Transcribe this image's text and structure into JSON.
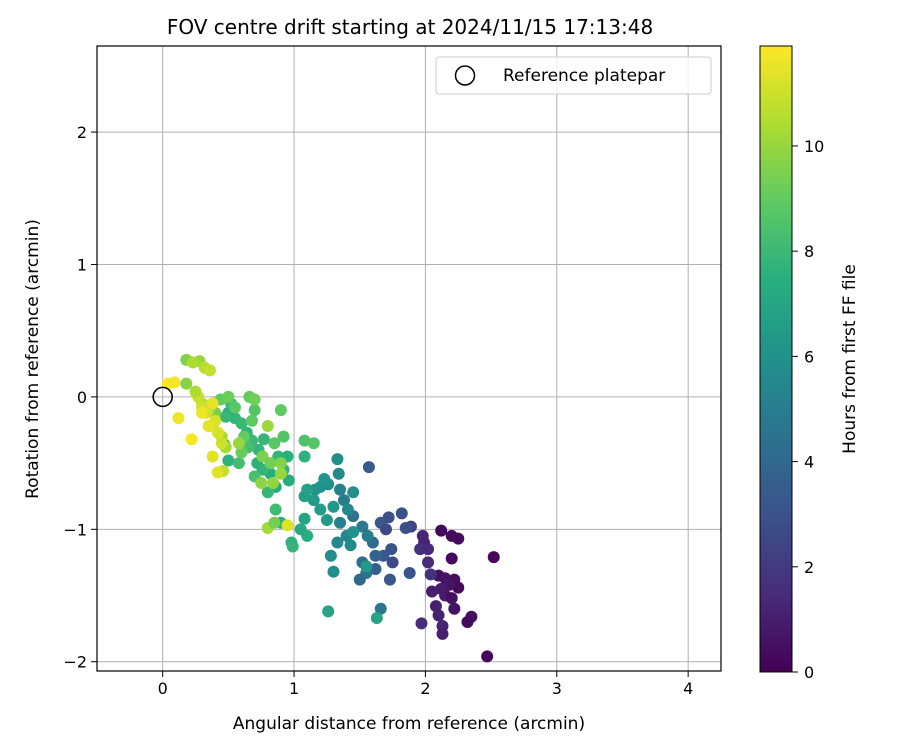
{
  "chart_data": {
    "type": "scatter",
    "title": "FOV centre drift starting at 2024/11/15 17:13:48",
    "xlabel": "Angular distance from reference (arcmin)",
    "ylabel": "Rotation from reference (arcmin)",
    "xlim": [
      -0.5,
      4.25
    ],
    "ylim": [
      -2.07,
      2.65
    ],
    "xticks": [
      0,
      1,
      2,
      3,
      4
    ],
    "yticks": [
      -2,
      -1,
      0,
      1,
      2
    ],
    "xtick_labels": [
      "0",
      "1",
      "2",
      "3",
      "4"
    ],
    "ytick_labels": [
      "−2",
      "−1",
      "0",
      "1",
      "2"
    ],
    "grid": true,
    "legend": {
      "location": "top-right",
      "entries": [
        {
          "label": "Reference platepar",
          "marker": "open-circle"
        }
      ]
    },
    "reference_point": {
      "x": 0,
      "y": 0
    },
    "colorbar": {
      "label": "Hours from first FF file",
      "colormap": "viridis",
      "range": [
        0,
        11.9
      ],
      "ticks": [
        0,
        2,
        4,
        6,
        8,
        10
      ],
      "tick_labels": [
        "0",
        "2",
        "4",
        "6",
        "8",
        "10"
      ]
    },
    "series": [
      {
        "values": [
          {
            "x": 2.12,
            "y": -1.01,
            "c": 0.2
          },
          {
            "x": 2.2,
            "y": -1.05,
            "c": 0.3
          },
          {
            "x": 2.25,
            "y": -1.07,
            "c": 0.3
          },
          {
            "x": 2.52,
            "y": -1.21,
            "c": 0.2
          },
          {
            "x": 2.2,
            "y": -1.22,
            "c": 0.3
          },
          {
            "x": 2.1,
            "y": -1.35,
            "c": 0.5
          },
          {
            "x": 2.15,
            "y": -1.37,
            "c": 0.6
          },
          {
            "x": 2.22,
            "y": -1.38,
            "c": 0.4
          },
          {
            "x": 2.25,
            "y": -1.44,
            "c": 0.3
          },
          {
            "x": 2.18,
            "y": -1.42,
            "c": 0.7
          },
          {
            "x": 2.12,
            "y": -1.45,
            "c": 0.9
          },
          {
            "x": 2.05,
            "y": -1.47,
            "c": 1.0
          },
          {
            "x": 2.15,
            "y": -1.5,
            "c": 0.8
          },
          {
            "x": 2.2,
            "y": -1.52,
            "c": 0.5
          },
          {
            "x": 2.08,
            "y": -1.58,
            "c": 1.0
          },
          {
            "x": 2.22,
            "y": -1.6,
            "c": 0.6
          },
          {
            "x": 2.1,
            "y": -1.65,
            "c": 1.1
          },
          {
            "x": 2.35,
            "y": -1.66,
            "c": 0.4
          },
          {
            "x": 2.32,
            "y": -1.7,
            "c": 0.3
          },
          {
            "x": 1.97,
            "y": -1.71,
            "c": 1.5
          },
          {
            "x": 2.13,
            "y": -1.73,
            "c": 1.2
          },
          {
            "x": 2.13,
            "y": -1.79,
            "c": 1.0
          },
          {
            "x": 2.47,
            "y": -1.96,
            "c": 0.2
          },
          {
            "x": 1.98,
            "y": -1.05,
            "c": 1.3
          },
          {
            "x": 1.99,
            "y": -1.1,
            "c": 1.2
          },
          {
            "x": 1.96,
            "y": -1.15,
            "c": 1.6
          },
          {
            "x": 2.02,
            "y": -1.15,
            "c": 1.4
          },
          {
            "x": 2.02,
            "y": -1.25,
            "c": 1.4
          },
          {
            "x": 2.04,
            "y": -1.34,
            "c": 1.7
          },
          {
            "x": 1.89,
            "y": -0.98,
            "c": 2.4
          },
          {
            "x": 1.82,
            "y": -0.88,
            "c": 3.0
          },
          {
            "x": 1.85,
            "y": -0.99,
            "c": 2.8
          },
          {
            "x": 1.72,
            "y": -0.91,
            "c": 2.9
          },
          {
            "x": 1.66,
            "y": -0.95,
            "c": 3.2
          },
          {
            "x": 1.7,
            "y": -1.0,
            "c": 2.6
          },
          {
            "x": 1.74,
            "y": -1.15,
            "c": 3.0
          },
          {
            "x": 1.68,
            "y": -1.2,
            "c": 3.3
          },
          {
            "x": 1.75,
            "y": -1.25,
            "c": 2.7
          },
          {
            "x": 1.88,
            "y": -1.33,
            "c": 3.0
          },
          {
            "x": 1.73,
            "y": -1.38,
            "c": 3.2
          },
          {
            "x": 1.62,
            "y": -1.3,
            "c": 3.6
          },
          {
            "x": 1.57,
            "y": -0.53,
            "c": 3.4
          },
          {
            "x": 1.6,
            "y": -1.1,
            "c": 4.0
          },
          {
            "x": 1.62,
            "y": -1.2,
            "c": 3.8
          },
          {
            "x": 1.52,
            "y": -1.25,
            "c": 4.2
          },
          {
            "x": 1.55,
            "y": -1.33,
            "c": 4.5
          },
          {
            "x": 1.5,
            "y": -1.38,
            "c": 4.0
          },
          {
            "x": 1.66,
            "y": -1.6,
            "c": 4.6
          },
          {
            "x": 1.45,
            "y": -0.9,
            "c": 4.4
          },
          {
            "x": 1.52,
            "y": -0.98,
            "c": 4.8
          },
          {
            "x": 1.56,
            "y": -1.05,
            "c": 5.0
          },
          {
            "x": 1.35,
            "y": -0.95,
            "c": 5.2
          },
          {
            "x": 1.4,
            "y": -1.05,
            "c": 5.4
          },
          {
            "x": 1.43,
            "y": -1.12,
            "c": 5.6
          },
          {
            "x": 1.33,
            "y": -1.1,
            "c": 5.5
          },
          {
            "x": 1.28,
            "y": -1.2,
            "c": 5.7
          },
          {
            "x": 1.3,
            "y": -1.32,
            "c": 5.9
          },
          {
            "x": 1.35,
            "y": -0.7,
            "c": 5.3
          },
          {
            "x": 1.38,
            "y": -0.78,
            "c": 5.0
          },
          {
            "x": 1.41,
            "y": -0.85,
            "c": 5.5
          },
          {
            "x": 1.33,
            "y": -0.47,
            "c": 5.8
          },
          {
            "x": 1.34,
            "y": -0.58,
            "c": 5.5
          },
          {
            "x": 1.45,
            "y": -0.72,
            "c": 5.9
          },
          {
            "x": 1.26,
            "y": -0.66,
            "c": 5.8
          },
          {
            "x": 1.2,
            "y": -0.68,
            "c": 6.0
          },
          {
            "x": 1.23,
            "y": -0.62,
            "c": 6.2
          },
          {
            "x": 1.16,
            "y": -0.7,
            "c": 6.1
          },
          {
            "x": 1.3,
            "y": -0.83,
            "c": 6.3
          },
          {
            "x": 1.25,
            "y": -0.93,
            "c": 6.4
          },
          {
            "x": 1.2,
            "y": -0.85,
            "c": 6.5
          },
          {
            "x": 1.08,
            "y": -0.75,
            "c": 6.6
          },
          {
            "x": 1.1,
            "y": -0.7,
            "c": 6.8
          },
          {
            "x": 1.15,
            "y": -0.78,
            "c": 6.4
          },
          {
            "x": 1.45,
            "y": -1.02,
            "c": 6.0
          },
          {
            "x": 1.55,
            "y": -1.28,
            "c": 6.3
          },
          {
            "x": 1.26,
            "y": -1.62,
            "c": 6.9
          },
          {
            "x": 1.63,
            "y": -1.67,
            "c": 6.9
          },
          {
            "x": 1.05,
            "y": -1.0,
            "c": 7.2
          },
          {
            "x": 1.08,
            "y": -0.92,
            "c": 7.0
          },
          {
            "x": 1.1,
            "y": -1.05,
            "c": 7.4
          },
          {
            "x": 0.9,
            "y": -0.95,
            "c": 7.5
          },
          {
            "x": 0.98,
            "y": -1.1,
            "c": 7.6
          },
          {
            "x": 0.96,
            "y": -0.63,
            "c": 7.3
          },
          {
            "x": 0.92,
            "y": -0.55,
            "c": 7.7
          },
          {
            "x": 0.86,
            "y": -0.68,
            "c": 7.2
          },
          {
            "x": 0.88,
            "y": -0.45,
            "c": 7.8
          },
          {
            "x": 0.95,
            "y": -0.45,
            "c": 7.5
          },
          {
            "x": 1.08,
            "y": -0.45,
            "c": 7.6
          },
          {
            "x": 0.82,
            "y": -0.58,
            "c": 7.4
          },
          {
            "x": 0.8,
            "y": -0.72,
            "c": 7.9
          },
          {
            "x": 0.76,
            "y": -0.55,
            "c": 7.8
          },
          {
            "x": 0.72,
            "y": -0.5,
            "c": 7.6
          },
          {
            "x": 0.73,
            "y": -0.4,
            "c": 7.8
          },
          {
            "x": 0.77,
            "y": -0.32,
            "c": 7.9
          },
          {
            "x": 0.68,
            "y": -0.33,
            "c": 8.0
          },
          {
            "x": 0.64,
            "y": -0.27,
            "c": 7.7
          },
          {
            "x": 0.6,
            "y": -0.2,
            "c": 8.0
          },
          {
            "x": 0.55,
            "y": -0.16,
            "c": 7.8
          },
          {
            "x": 0.5,
            "y": -0.12,
            "c": 7.5
          },
          {
            "x": 0.48,
            "y": -0.15,
            "c": 7.9
          },
          {
            "x": 0.52,
            "y": -0.05,
            "c": 8.1
          },
          {
            "x": 0.47,
            "y": -0.36,
            "c": 7.7
          },
          {
            "x": 0.5,
            "y": -0.48,
            "c": 7.6
          },
          {
            "x": 0.58,
            "y": -0.5,
            "c": 8.2
          },
          {
            "x": 0.65,
            "y": -0.38,
            "c": 8.3
          },
          {
            "x": 0.7,
            "y": -0.6,
            "c": 8.4
          },
          {
            "x": 0.86,
            "y": -0.85,
            "c": 8.1
          },
          {
            "x": 0.99,
            "y": -1.13,
            "c": 7.8
          },
          {
            "x": 1.08,
            "y": -0.33,
            "c": 8.5
          },
          {
            "x": 1.15,
            "y": -0.35,
            "c": 8.7
          },
          {
            "x": 0.92,
            "y": -0.3,
            "c": 8.6
          },
          {
            "x": 0.85,
            "y": -0.35,
            "c": 8.8
          },
          {
            "x": 0.9,
            "y": -0.1,
            "c": 8.9
          },
          {
            "x": 0.7,
            "y": -0.1,
            "c": 8.6
          },
          {
            "x": 0.68,
            "y": -0.18,
            "c": 8.9
          },
          {
            "x": 0.62,
            "y": -0.3,
            "c": 9.0
          },
          {
            "x": 0.6,
            "y": -0.42,
            "c": 9.1
          },
          {
            "x": 0.55,
            "y": -0.08,
            "c": 8.8
          },
          {
            "x": 0.44,
            "y": -0.02,
            "c": 9.0
          },
          {
            "x": 0.5,
            "y": 0.0,
            "c": 9.2
          },
          {
            "x": 0.66,
            "y": 0.0,
            "c": 9.0
          },
          {
            "x": 0.7,
            "y": -0.02,
            "c": 9.3
          },
          {
            "x": 0.4,
            "y": -0.12,
            "c": 9.4
          },
          {
            "x": 0.76,
            "y": -0.45,
            "c": 9.5
          },
          {
            "x": 0.82,
            "y": -0.5,
            "c": 9.3
          },
          {
            "x": 0.9,
            "y": -0.5,
            "c": 9.6
          },
          {
            "x": 0.75,
            "y": -0.65,
            "c": 9.8
          },
          {
            "x": 0.84,
            "y": -0.65,
            "c": 9.9
          },
          {
            "x": 0.9,
            "y": -0.58,
            "c": 10.0
          },
          {
            "x": 0.8,
            "y": -0.22,
            "c": 10.1
          },
          {
            "x": 0.58,
            "y": -0.35,
            "c": 10.0
          },
          {
            "x": 0.48,
            "y": -0.38,
            "c": 10.3
          },
          {
            "x": 0.45,
            "y": -0.3,
            "c": 10.4
          },
          {
            "x": 0.38,
            "y": -0.22,
            "c": 10.6
          },
          {
            "x": 0.35,
            "y": -0.1,
            "c": 10.5
          },
          {
            "x": 0.3,
            "y": -0.05,
            "c": 10.7
          },
          {
            "x": 0.27,
            "y": 0.0,
            "c": 10.9
          },
          {
            "x": 0.25,
            "y": 0.04,
            "c": 10.4
          },
          {
            "x": 0.18,
            "y": 0.1,
            "c": 9.7
          },
          {
            "x": 0.18,
            "y": 0.28,
            "c": 9.6
          },
          {
            "x": 0.28,
            "y": 0.27,
            "c": 10.0
          },
          {
            "x": 0.23,
            "y": 0.26,
            "c": 10.4
          },
          {
            "x": 0.32,
            "y": 0.22,
            "c": 10.6
          },
          {
            "x": 0.36,
            "y": 0.2,
            "c": 10.8
          },
          {
            "x": 0.3,
            "y": -0.08,
            "c": 11.0
          },
          {
            "x": 0.33,
            "y": -0.12,
            "c": 11.1
          },
          {
            "x": 0.4,
            "y": -0.18,
            "c": 11.2
          },
          {
            "x": 0.45,
            "y": -0.35,
            "c": 11.0
          },
          {
            "x": 0.46,
            "y": -0.56,
            "c": 10.8
          },
          {
            "x": 0.42,
            "y": -0.57,
            "c": 11.3
          },
          {
            "x": 0.38,
            "y": -0.45,
            "c": 11.4
          },
          {
            "x": 0.42,
            "y": -0.27,
            "c": 11.2
          },
          {
            "x": 0.35,
            "y": -0.22,
            "c": 11.5
          },
          {
            "x": 0.12,
            "y": -0.16,
            "c": 11.6
          },
          {
            "x": 0.22,
            "y": -0.32,
            "c": 11.8
          },
          {
            "x": 0.04,
            "y": 0.1,
            "c": 11.9
          },
          {
            "x": 0.09,
            "y": 0.11,
            "c": 11.7
          },
          {
            "x": 0.3,
            "y": -0.12,
            "c": 11.6
          },
          {
            "x": 0.38,
            "y": -0.05,
            "c": 11.5
          },
          {
            "x": 0.95,
            "y": -0.97,
            "c": 11.3
          },
          {
            "x": 0.8,
            "y": -0.99,
            "c": 10.2
          },
          {
            "x": 0.85,
            "y": -0.95,
            "c": 9.4
          }
        ]
      }
    ]
  }
}
